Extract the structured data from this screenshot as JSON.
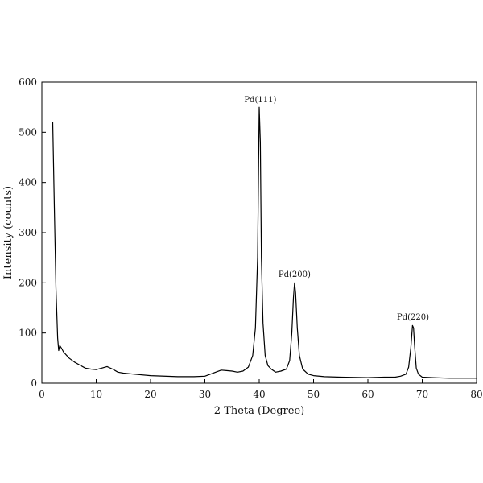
{
  "chart_data": {
    "type": "line",
    "title": "",
    "xlabel": "2 Theta (Degree)",
    "ylabel": "Intensity (counts)",
    "xlim": [
      0,
      80
    ],
    "ylim": [
      0,
      600
    ],
    "x_ticks": [
      0,
      10,
      20,
      30,
      40,
      50,
      60,
      70,
      80
    ],
    "y_ticks": [
      0,
      100,
      200,
      300,
      400,
      500,
      600
    ],
    "grid": false,
    "legend": "none",
    "line_color": "#000000",
    "series": [
      {
        "x": [
          2,
          2.3,
          2.6,
          2.9,
          3.1,
          3.3,
          3.6,
          4,
          5,
          6,
          7,
          8,
          9,
          10,
          11,
          12,
          13,
          14,
          15,
          17,
          20,
          25,
          28,
          30,
          31,
          32,
          33,
          34,
          35,
          36,
          37,
          38,
          38.8,
          39.3,
          39.7,
          40.0,
          40.2,
          40.4,
          40.7,
          41.1,
          41.6,
          42.2,
          43,
          44,
          45,
          45.6,
          46.0,
          46.3,
          46.5,
          46.7,
          47.0,
          47.4,
          48,
          49,
          50,
          52,
          55,
          60,
          63,
          65,
          66,
          67,
          67.5,
          67.9,
          68.2,
          68.4,
          68.6,
          68.9,
          69.3,
          70,
          72,
          75,
          80
        ],
        "y": [
          520,
          350,
          190,
          90,
          65,
          75,
          70,
          62,
          50,
          42,
          36,
          30,
          28,
          27,
          30,
          33,
          28,
          22,
          20,
          18,
          15,
          13,
          13,
          14,
          18,
          22,
          26,
          25,
          24,
          22,
          24,
          32,
          55,
          110,
          250,
          550,
          480,
          250,
          120,
          55,
          35,
          28,
          22,
          24,
          28,
          45,
          100,
          170,
          200,
          180,
          110,
          55,
          28,
          18,
          15,
          13,
          12,
          11,
          12,
          12,
          14,
          18,
          32,
          70,
          115,
          110,
          75,
          30,
          18,
          12,
          11,
          10,
          10
        ]
      }
    ],
    "annotations": [
      {
        "text": "Pd(111)",
        "x": 40.2,
        "y": 560
      },
      {
        "text": "Pd(200)",
        "x": 46.5,
        "y": 212
      },
      {
        "text": "Pd(220)",
        "x": 68.3,
        "y": 127
      }
    ]
  }
}
